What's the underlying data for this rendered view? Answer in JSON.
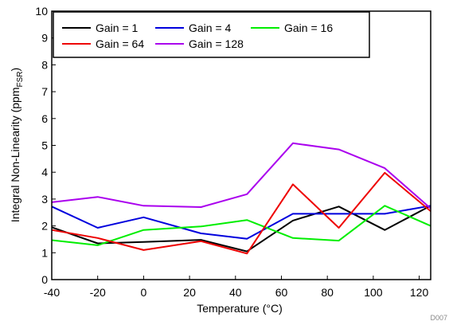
{
  "chart_data": {
    "type": "line",
    "title": "",
    "xlabel": "Temperature (°C)",
    "ylabel_main": "Integral Non-Linearity (ppm",
    "ylabel_sub": "FSR",
    "ylabel_close": ")",
    "xlim": [
      -40,
      125
    ],
    "ylim": [
      0,
      10
    ],
    "x_ticks": [
      -40,
      -20,
      0,
      20,
      40,
      60,
      80,
      100,
      120
    ],
    "y_ticks": [
      0,
      1,
      2,
      3,
      4,
      5,
      6,
      7,
      8,
      9,
      10
    ],
    "grid": false,
    "legend_position": "top-left",
    "footnote": "D007",
    "x": [
      -40,
      -20,
      0,
      25,
      45,
      65,
      85,
      105,
      125
    ],
    "series": [
      {
        "name": "Gain = 1",
        "color": "#000000",
        "values": [
          1.95,
          1.35,
          1.4,
          1.48,
          1.05,
          2.2,
          2.72,
          1.85,
          2.75
        ]
      },
      {
        "name": "Gain = 4",
        "color": "#0000dd",
        "values": [
          2.72,
          1.93,
          2.32,
          1.72,
          1.52,
          2.45,
          2.45,
          2.45,
          2.75
        ]
      },
      {
        "name": "Gain = 16",
        "color": "#00ee00",
        "values": [
          1.47,
          1.28,
          1.85,
          1.98,
          2.22,
          1.55,
          1.45,
          2.75,
          2.0
        ]
      },
      {
        "name": "Gain = 64",
        "color": "#ee0000",
        "values": [
          1.85,
          1.55,
          1.1,
          1.43,
          0.97,
          3.55,
          1.93,
          3.98,
          2.55
        ]
      },
      {
        "name": "Gain = 128",
        "color": "#aa00ee",
        "values": [
          2.88,
          3.08,
          2.75,
          2.7,
          3.18,
          5.08,
          4.85,
          4.15,
          2.65
        ]
      }
    ]
  }
}
